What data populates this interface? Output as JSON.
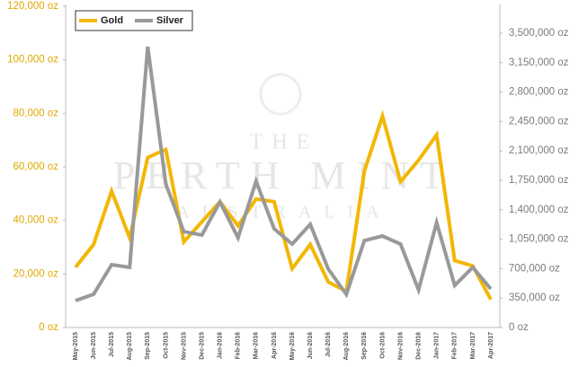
{
  "chart_data": {
    "type": "line",
    "watermark": [
      "THE",
      "PERTH MINT",
      "AUSTRALIA"
    ],
    "categories": [
      "May-2015",
      "Jun-2015",
      "Jul-2015",
      "Aug-2015",
      "Sep-2015",
      "Oct-2015",
      "Nov-2015",
      "Dec-2015",
      "Jan-2016",
      "Feb-2016",
      "Mar-2016",
      "Apr-2016",
      "May-2016",
      "Jun-2016",
      "Jul-2016",
      "Aug-2016",
      "Sep-2016",
      "Oct-2016",
      "Nov-2016",
      "Dec-2016",
      "Jan-2017",
      "Feb-2017",
      "Mar-2017",
      "Apr-2017"
    ],
    "series": [
      {
        "name": "Gold",
        "color": "#f2b705",
        "axis": "y",
        "values": [
          22500,
          31000,
          51000,
          33500,
          63500,
          66500,
          32000,
          39500,
          47000,
          38000,
          48000,
          47000,
          22000,
          31000,
          17000,
          13500,
          58500,
          79000,
          54500,
          62500,
          72000,
          25000,
          23000,
          10500
        ]
      },
      {
        "name": "Silver",
        "color": "#999999",
        "axis": "y2",
        "values": [
          320000,
          395000,
          747000,
          715000,
          3340000,
          1707000,
          1140000,
          1100000,
          1494000,
          1067000,
          1740000,
          1174000,
          992000,
          1227000,
          694000,
          395000,
          1035000,
          1088000,
          992000,
          448000,
          1248000,
          501000,
          715000,
          459000
        ]
      }
    ],
    "ylim": [
      0,
      120000
    ],
    "yticks": [
      {
        "value": 0,
        "label": "0 oz"
      },
      {
        "value": 20000,
        "label": "20,000 oz"
      },
      {
        "value": 40000,
        "label": "40,000 oz"
      },
      {
        "value": 60000,
        "label": "60,000 oz"
      },
      {
        "value": 80000,
        "label": "80,000 oz"
      },
      {
        "value": 100000,
        "label": "100,000 oz"
      },
      {
        "value": 120000,
        "label": "120,000 oz"
      }
    ],
    "y2lim": [
      0,
      3820000
    ],
    "y2ticks": [
      {
        "value": 0,
        "label": "0 oz"
      },
      {
        "value": 350000,
        "label": "350,000 oz"
      },
      {
        "value": 700000,
        "label": "700,000 oz"
      },
      {
        "value": 1050000,
        "label": "1,050,000 oz"
      },
      {
        "value": 1400000,
        "label": "1,400,000 oz"
      },
      {
        "value": 1750000,
        "label": "1,750,000 oz"
      },
      {
        "value": 2100000,
        "label": "2,100,000 oz"
      },
      {
        "value": 2450000,
        "label": "2,450,000 oz"
      },
      {
        "value": 2800000,
        "label": "2,800,000 oz"
      },
      {
        "value": 3150000,
        "label": "3,150,000 oz"
      },
      {
        "value": 3500000,
        "label": "3,500,000 oz"
      }
    ],
    "legend": "upper left"
  }
}
